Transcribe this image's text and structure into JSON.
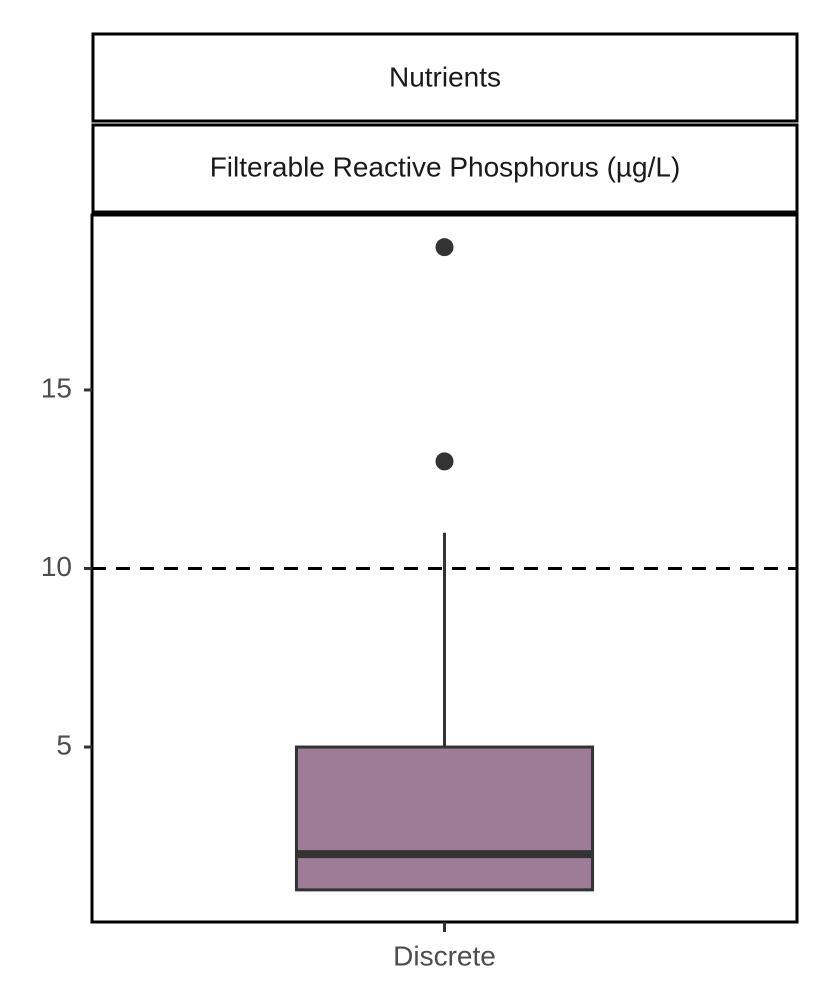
{
  "chart_data": {
    "type": "box",
    "strips": [
      "Nutrients",
      "Filterable Reactive Phosphorus (µg/L)"
    ],
    "categories": [
      "Discrete"
    ],
    "boxes": [
      {
        "color": "#9e7b96",
        "whisker_low": 1,
        "q1": 1,
        "median": 2,
        "q3": 5,
        "whisker_high": 11,
        "outliers": [
          13,
          19
        ]
      }
    ],
    "ylim": [
      0.1,
      19.9
    ],
    "yticks": [
      5,
      10,
      15
    ],
    "reference_line": {
      "value": 10,
      "style": "dashed"
    }
  }
}
